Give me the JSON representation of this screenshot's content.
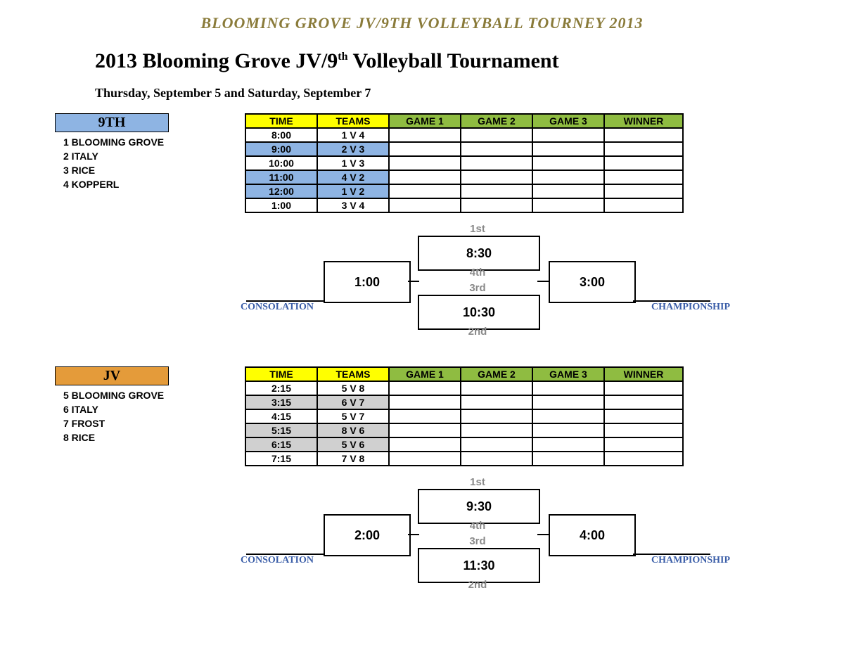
{
  "banner": "BLOOMING GROVE JV/9TH VOLLEYBALL TOURNEY 2013",
  "title_pre": "2013 Blooming Grove JV/9",
  "title_sup": "th",
  "title_post": " Volleyball Tournament",
  "dates": "Thursday, September 5 and Saturday, September 7",
  "colors": {
    "banner": "#8a7b3a",
    "badge_9th": "#8eb4e3",
    "badge_jv": "#e49b3a",
    "hdr_time_teams": "#ffff00",
    "hdr_games": "#8fbc41",
    "row_hl_9th": "#8eb4e3",
    "row_hl_jv": "#d0d0d0",
    "seed_grey": "#8a8a8a",
    "caption_blue": "#3b5ea8",
    "border": "#000000"
  },
  "schedule_headers": {
    "time": "TIME",
    "teams": "TEAMS",
    "game1": "GAME 1",
    "game2": "GAME 2",
    "game3": "GAME 3",
    "winner": "WINNER"
  },
  "ninth": {
    "badge": "9TH",
    "teams": [
      {
        "n": "1",
        "name": "BLOOMING GROVE"
      },
      {
        "n": "2",
        "name": "ITALY"
      },
      {
        "n": "3",
        "name": "RICE"
      },
      {
        "n": "4",
        "name": "KOPPERL"
      }
    ],
    "rows": [
      {
        "time": "8:00",
        "teams": "1 V 4",
        "hl": false
      },
      {
        "time": "9:00",
        "teams": "2 V 3",
        "hl": true
      },
      {
        "time": "10:00",
        "teams": "1 V 3",
        "hl": false
      },
      {
        "time": "11:00",
        "teams": "4 V 2",
        "hl": true
      },
      {
        "time": "12:00",
        "teams": "1 V 2",
        "hl": true
      },
      {
        "time": "1:00",
        "teams": "3 V 4",
        "hl": false
      }
    ],
    "bracket": {
      "top_seed": "1st",
      "top_time": "8:30",
      "top_bottom": "4th",
      "mid_seed": "3rd",
      "bot_time": "10:30",
      "bot_bottom": "2nd",
      "left_time": "1:00",
      "right_time": "3:00",
      "left_caption": "CONSOLATION",
      "right_caption": "CHAMPIONSHIP"
    }
  },
  "jv": {
    "badge": "JV",
    "teams": [
      {
        "n": "5",
        "name": "BLOOMING GROVE"
      },
      {
        "n": "6",
        "name": "ITALY"
      },
      {
        "n": "7",
        "name": "FROST"
      },
      {
        "n": "8",
        "name": "RICE"
      }
    ],
    "rows": [
      {
        "time": "2:15",
        "teams": "5 V 8",
        "hl": false
      },
      {
        "time": "3:15",
        "teams": "6 V 7",
        "hl": true
      },
      {
        "time": "4:15",
        "teams": "5 V 7",
        "hl": false
      },
      {
        "time": "5:15",
        "teams": "8 V 6",
        "hl": true
      },
      {
        "time": "6:15",
        "teams": "5 V 6",
        "hl": true
      },
      {
        "time": "7:15",
        "teams": "7 V 8",
        "hl": false
      }
    ],
    "bracket": {
      "top_seed": "1st",
      "top_time": "9:30",
      "top_bottom": "4th",
      "mid_seed": "3rd",
      "bot_time": "11:30",
      "bot_bottom": "2nd",
      "left_time": "2:00",
      "right_time": "4:00",
      "left_caption": "CONSOLATION",
      "right_caption": "CHAMPIONSHIP"
    }
  }
}
